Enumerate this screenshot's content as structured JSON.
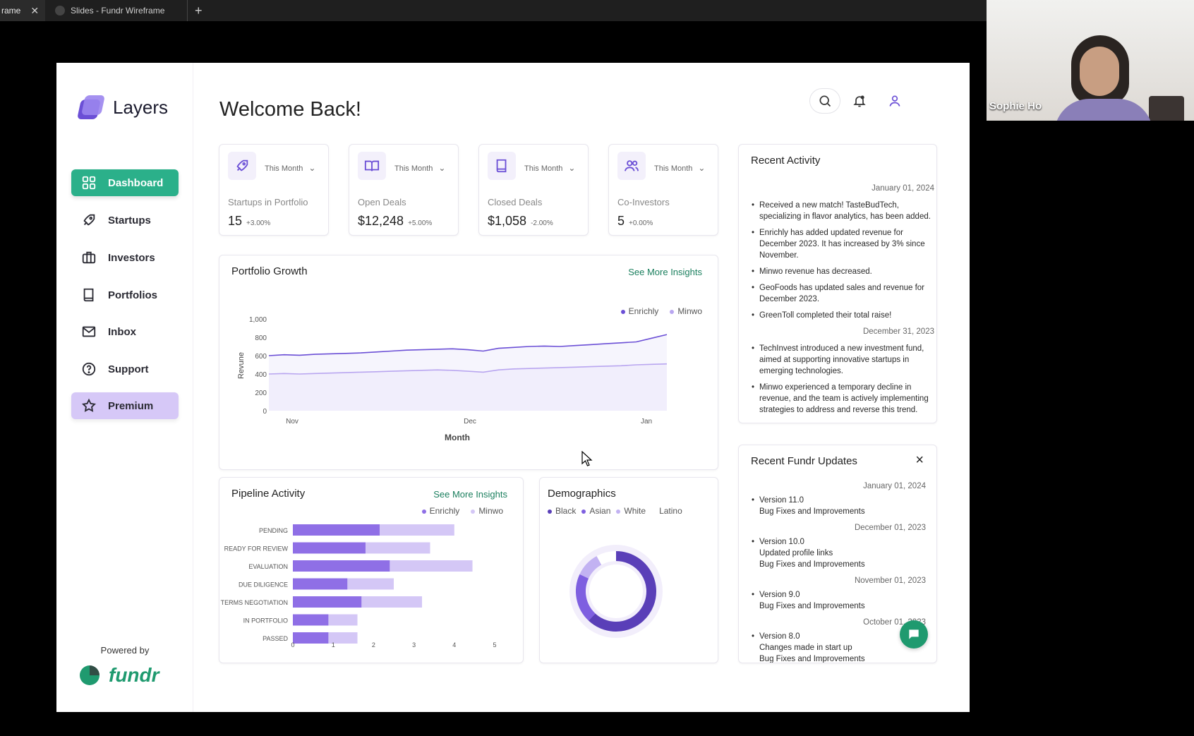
{
  "browser": {
    "active_tab": "rame",
    "second_tab": "Slides - Fundr Wireframe",
    "new_tab_label": "+"
  },
  "video": {
    "participant_name": "Sophie Ho"
  },
  "app": {
    "brand": "Layers",
    "welcome": "Welcome Back!",
    "nav": [
      {
        "label": "Dashboard",
        "icon": "grid-icon"
      },
      {
        "label": "Startups",
        "icon": "rocket-icon"
      },
      {
        "label": "Investors",
        "icon": "briefcase-icon"
      },
      {
        "label": "Portfolios",
        "icon": "book-icon"
      },
      {
        "label": "Inbox",
        "icon": "mail-icon"
      },
      {
        "label": "Support",
        "icon": "help-icon"
      },
      {
        "label": "Premium",
        "icon": "star-icon"
      }
    ],
    "powered_by": "Powered by",
    "partner": "fundr",
    "stats": [
      {
        "period": "This Month",
        "label": "Startups in Portfolio",
        "value": "15",
        "change": "+3.00%",
        "icon": "rocket-icon"
      },
      {
        "period": "This Month",
        "label": "Open Deals",
        "value": "$12,248",
        "change": "+5.00%",
        "icon": "book-open-icon"
      },
      {
        "period": "This Month",
        "label": "Closed Deals",
        "value": "$1,058",
        "change": "-2.00%",
        "icon": "book-icon"
      },
      {
        "period": "This Month",
        "label": "Co-Investors",
        "value": "5",
        "change": "+0.00%",
        "icon": "users-icon"
      }
    ],
    "portfolio_growth": {
      "title": "Portfolio Growth",
      "link": "See More Insights"
    },
    "pipeline": {
      "title": "Pipeline Activity",
      "link": "See More Insights"
    },
    "demographics": {
      "title": "Demographics"
    },
    "recent_activity": {
      "title": "Recent Activity",
      "groups": [
        {
          "date": "January 01, 2024",
          "items": [
            "Received a new match! TasteBudTech, specializing in flavor analytics, has been added.",
            "Enrichly has added updated revenue for December 2023. It has increased by 3% since November.",
            "Minwo revenue has decreased.",
            "GeoFoods has updated sales and revenue for December 2023.",
            "GreenToll completed their total raise!"
          ]
        },
        {
          "date": "December 31, 2023",
          "items": [
            "TechInvest introduced a new investment fund, aimed at supporting innovative startups in emerging technologies.",
            "Minwo experienced a temporary decline in revenue, and the team is actively implementing strategies to address and reverse this trend."
          ]
        }
      ]
    },
    "fundr_updates": {
      "title": "Recent Fundr Updates",
      "close": "×",
      "entries": [
        {
          "date": "January 01, 2024",
          "version": "Version 11.0",
          "notes": [
            "Bug Fixes and Improvements"
          ]
        },
        {
          "date": "December 01, 2023",
          "version": "Version 10.0",
          "notes": [
            "Updated profile links",
            "Bug Fixes and Improvements"
          ]
        },
        {
          "date": "November 01, 2023",
          "version": "Version 9.0",
          "notes": [
            "Bug Fixes and Improvements"
          ]
        },
        {
          "date": "October 01, 2023",
          "version": "Version 8.0",
          "notes": [
            "Changes made in start up",
            "Bug Fixes and Improvements"
          ]
        }
      ]
    }
  },
  "colors": {
    "accent": "#2bb08a",
    "primary": "#6b4fd6",
    "secondary": "#c6b6f4"
  },
  "chart_data": [
    {
      "type": "area",
      "title": "",
      "xlabel": "Month",
      "ylabel": "Revune",
      "x_ticks": [
        "Nov",
        "Dec",
        "Jan"
      ],
      "y_ticks": [
        "1,000",
        "800",
        "600",
        "400",
        "200",
        "0"
      ],
      "ylim": [
        0,
        1000
      ],
      "series": [
        {
          "name": "Enrichly",
          "color": "#6b4fd6",
          "values": [
            600,
            610,
            605,
            615,
            620,
            625,
            630,
            640,
            650,
            660,
            665,
            670,
            675,
            665,
            650,
            680,
            690,
            700,
            705,
            700,
            710,
            720,
            730,
            740,
            750,
            790,
            830
          ]
        },
        {
          "name": "Minwo",
          "color": "#b9a6f0",
          "values": [
            400,
            405,
            400,
            405,
            410,
            415,
            420,
            425,
            430,
            435,
            440,
            445,
            440,
            430,
            420,
            445,
            455,
            460,
            465,
            470,
            475,
            480,
            485,
            490,
            500,
            505,
            510
          ]
        }
      ]
    },
    {
      "type": "bar",
      "orientation": "horizontal",
      "stacked": "overlay",
      "categories": [
        "PENDING",
        "READY FOR REVIEW",
        "EVALUATION",
        "DUE DILIGENCE",
        "TERMS NEGOTIATION",
        "IN PORTFOLIO",
        "PASSED"
      ],
      "x_ticks": [
        "0",
        "1",
        "2",
        "3",
        "4",
        "5"
      ],
      "xlim": [
        0,
        5
      ],
      "series": [
        {
          "name": "Enrichly",
          "color": "#8f6fe6",
          "values": [
            2.15,
            1.8,
            2.4,
            1.35,
            1.7,
            0.88,
            0.88
          ]
        },
        {
          "name": "Minwo",
          "color": "#d4c7f6",
          "values": [
            4.0,
            3.4,
            4.45,
            2.5,
            3.2,
            1.6,
            1.6
          ]
        }
      ]
    },
    {
      "type": "pie",
      "style": "donut",
      "categories": [
        "Black",
        "Asian",
        "White",
        "Latino"
      ],
      "values": [
        62,
        20,
        10,
        8
      ],
      "colors": [
        "#5a3fb8",
        "#7e5fe0",
        "#c2b2f2",
        "#ffffff"
      ]
    }
  ]
}
